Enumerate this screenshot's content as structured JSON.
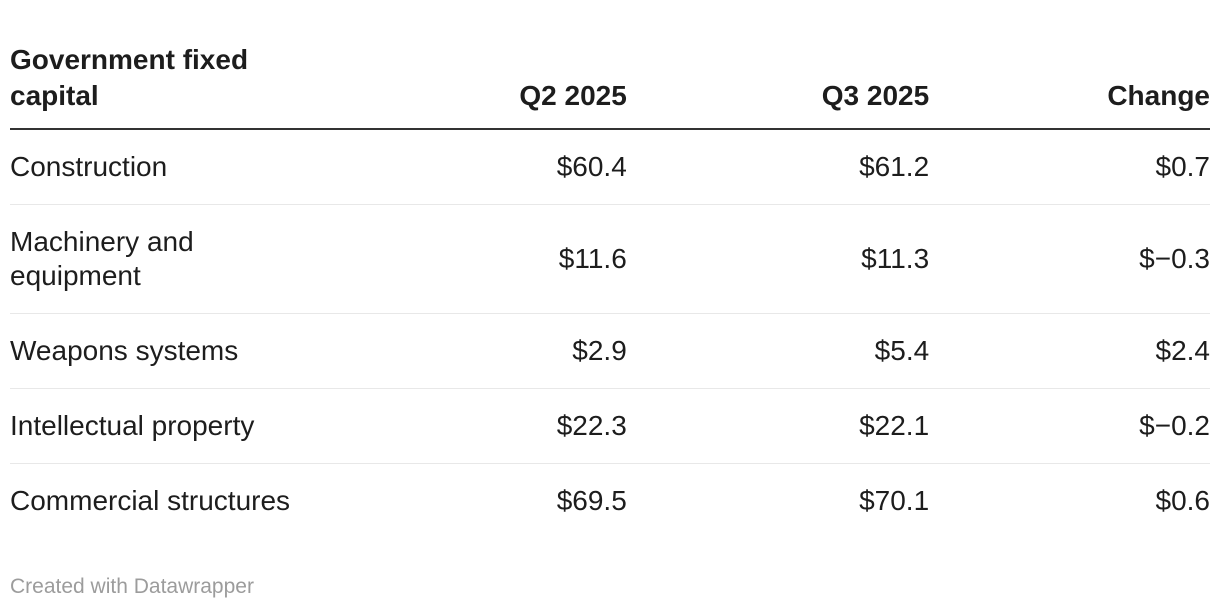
{
  "header": {
    "row_label_column": "Government fixed\ncapital",
    "columns": [
      "Q2 2025",
      "Q3 2025",
      "Change"
    ]
  },
  "rows": [
    {
      "label": "Construction",
      "q2": "$60.4",
      "q3": "$61.2",
      "change": "$0.7"
    },
    {
      "label": "Machinery and\nequipment",
      "q2": "$11.6",
      "q3": "$11.3",
      "change": "$−0.3"
    },
    {
      "label": "Weapons systems",
      "q2": "$2.9",
      "q3": "$5.4",
      "change": "$2.4"
    },
    {
      "label": "Intellectual property",
      "q2": "$22.3",
      "q3": "$22.1",
      "change": "$−0.2"
    },
    {
      "label": "Commercial structures",
      "q2": "$69.5",
      "q3": "$70.1",
      "change": "$0.6"
    }
  ],
  "footer": {
    "credit": "Created with Datawrapper"
  },
  "colors": {
    "text": "#1d1d1d",
    "header_rule": "#333333",
    "row_divider": "#e8e8e8",
    "footer_text": "#9c9c9c",
    "background": "#ffffff"
  },
  "chart_data": {
    "type": "table",
    "title": "Government fixed capital",
    "columns": [
      "Government fixed capital",
      "Q2 2025",
      "Q3 2025",
      "Change"
    ],
    "categories": [
      "Construction",
      "Machinery and equipment",
      "Weapons systems",
      "Intellectual property",
      "Commercial structures"
    ],
    "series": [
      {
        "name": "Q2 2025",
        "values": [
          60.4,
          11.6,
          2.9,
          22.3,
          69.5
        ]
      },
      {
        "name": "Q3 2025",
        "values": [
          61.2,
          11.3,
          5.4,
          22.1,
          70.1
        ]
      },
      {
        "name": "Change",
        "values": [
          0.7,
          -0.3,
          2.4,
          -0.2,
          0.6
        ]
      }
    ],
    "unit": "$",
    "value_format": "currency, one decimal, negatives shown as $−x.x",
    "legend_position": "none",
    "grid": "horizontal row dividers only",
    "footer": "Created with Datawrapper"
  }
}
